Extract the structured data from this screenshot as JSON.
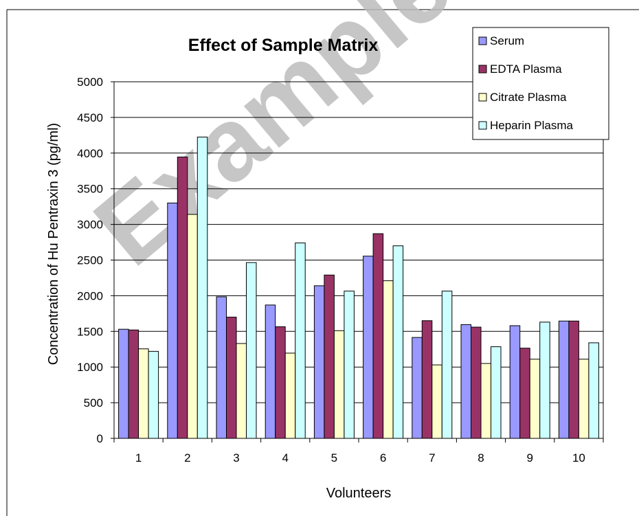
{
  "chart_data": {
    "type": "bar",
    "title": "Effect of Sample Matrix",
    "xlabel": "Volunteers",
    "ylabel": "Concentration of Hu Pentraxin 3 (pg/ml)",
    "ylim": [
      0,
      5000
    ],
    "ytick_step": 500,
    "yticks": [
      "0",
      "500",
      "1000",
      "1500",
      "2000",
      "2500",
      "3000",
      "3500",
      "4000",
      "4500",
      "5000"
    ],
    "grid": true,
    "legend_position": "top-right",
    "categories": [
      "1",
      "2",
      "3",
      "4",
      "5",
      "6",
      "7",
      "8",
      "9",
      "10"
    ],
    "series": [
      {
        "name": "Serum",
        "color": "#9999FF",
        "values": [
          1530,
          3300,
          1985,
          1870,
          2140,
          2555,
          1415,
          1595,
          1580,
          1645
        ]
      },
      {
        "name": "EDTA Plasma",
        "color": "#993366",
        "values": [
          1520,
          3945,
          1700,
          1565,
          2290,
          2870,
          1650,
          1560,
          1265,
          1645
        ]
      },
      {
        "name": "Citrate Plasma",
        "color": "#FFFFCC",
        "values": [
          1255,
          3140,
          1330,
          1195,
          1510,
          2210,
          1030,
          1050,
          1110,
          1110
        ]
      },
      {
        "name": "Heparin Plasma",
        "color": "#CCFFFF",
        "values": [
          1220,
          4225,
          2465,
          2740,
          2065,
          2700,
          2065,
          1285,
          1630,
          1340
        ]
      }
    ],
    "watermark": "Example"
  }
}
